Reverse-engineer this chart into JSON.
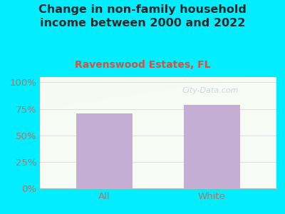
{
  "title": "Change in non-family household\nincome between 2000 and 2022",
  "subtitle": "Ravenswood Estates, FL",
  "categories": [
    "All",
    "White"
  ],
  "values": [
    70.5,
    78.5
  ],
  "bar_color": "#c4aed4",
  "background_color": "#00eeff",
  "plot_bg_color": "#eef5e8",
  "title_color": "#1a2a2a",
  "subtitle_color": "#cc5544",
  "tick_label_color": "#aa7766",
  "ylabel_ticks": [
    0,
    25,
    50,
    75,
    100
  ],
  "ylabel_labels": [
    "0%",
    "25%",
    "50%",
    "75%",
    "100%"
  ],
  "ylim": [
    0,
    105
  ],
  "title_fontsize": 11.5,
  "subtitle_fontsize": 10,
  "tick_fontsize": 9.5,
  "watermark": "City-Data.com",
  "grid_color": "#cccccc"
}
